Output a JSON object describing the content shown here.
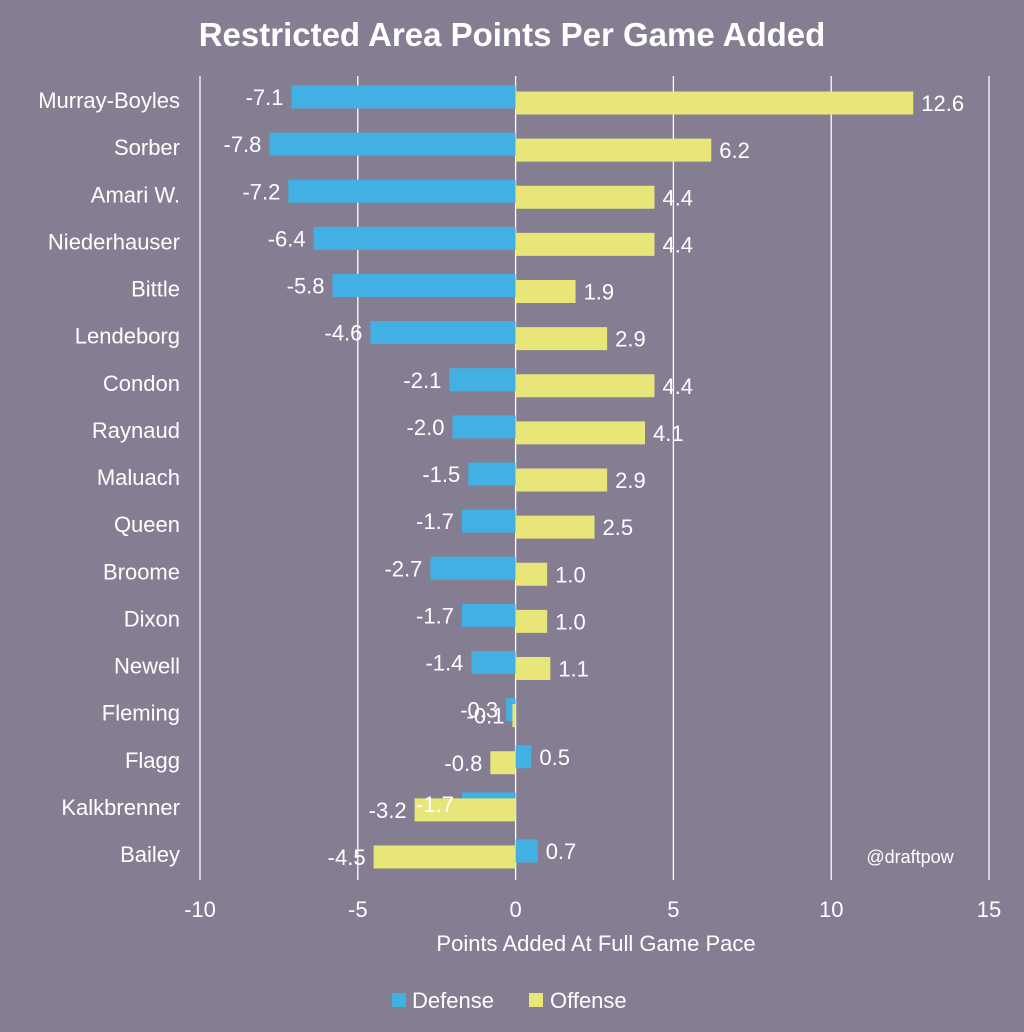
{
  "colors": {
    "background": "#857e93",
    "defense": "#42b0e2",
    "offense": "#e8e679",
    "gridline": "#ffffff",
    "text": "#ffffff",
    "category_text": "#ffffff"
  },
  "chart_data": {
    "type": "bar",
    "orientation": "horizontal",
    "title": "Restricted Area Points Per Game Added",
    "xlabel": "Points Added At Full Game Pace",
    "ylabel": "",
    "xlim": [
      -10,
      15
    ],
    "xticks": [
      -10,
      -5,
      0,
      5,
      10,
      15
    ],
    "xtick_labels": [
      "-10",
      "-5",
      "0",
      "5",
      "10",
      "15"
    ],
    "grid": true,
    "legend_position": "bottom-center",
    "watermark": "@draftpow",
    "categories": [
      "Murray-Boyles",
      "Sorber",
      "Amari W.",
      "Niederhauser",
      "Bittle",
      "Lendeborg",
      "Condon",
      "Raynaud",
      "Maluach",
      "Queen",
      "Broome",
      "Dixon",
      "Newell",
      "Fleming",
      "Flagg",
      "Kalkbrenner",
      "Bailey"
    ],
    "series": [
      {
        "name": "Defense",
        "values": [
          -7.1,
          -7.8,
          -7.2,
          -6.4,
          -5.8,
          -4.6,
          -2.1,
          -2.0,
          -1.5,
          -1.7,
          -2.7,
          -1.7,
          -1.4,
          -0.3,
          0.5,
          -1.7,
          0.7
        ],
        "labels": [
          "-7.1",
          "-7.8",
          "-7.2",
          "-6.4",
          "-5.8",
          "-4.6",
          "-2.1",
          "-2.0",
          "-1.5",
          "-1.7",
          "-2.7",
          "-1.7",
          "-1.4",
          "-0.3",
          "0.5",
          "-1.7",
          "0.7"
        ]
      },
      {
        "name": "Offense",
        "values": [
          12.6,
          6.2,
          4.4,
          4.4,
          1.9,
          2.9,
          4.4,
          4.1,
          2.9,
          2.5,
          1.0,
          1.0,
          1.1,
          -0.1,
          -0.8,
          -3.2,
          -4.5
        ],
        "labels": [
          "12.6",
          "6.2",
          "4.4",
          "4.4",
          "1.9",
          "2.9",
          "4.4",
          "4.1",
          "2.9",
          "2.5",
          "1.0",
          "1.0",
          "1.1",
          "-0.1",
          "-0.8",
          "-3.2",
          "-4.5"
        ]
      }
    ]
  }
}
